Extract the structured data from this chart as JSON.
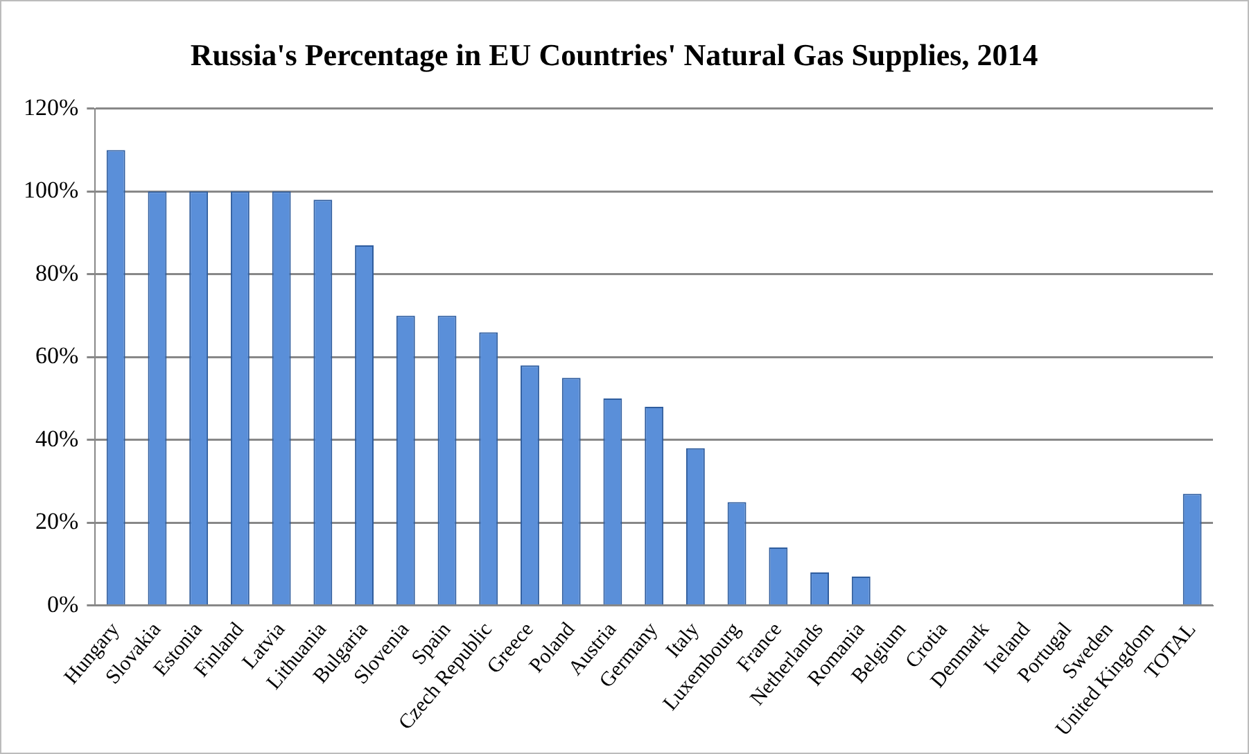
{
  "chart_data": {
    "type": "bar",
    "title": "Russia's Percentage in EU Countries' Natural Gas Supplies, 2014",
    "categories": [
      "Hungary",
      "Slovakia",
      "Estonia",
      "Finland",
      "Latvia",
      "Lithuania",
      "Bulgaria",
      "Slovenia",
      "Spain",
      "Czech Republic",
      "Greece",
      "Poland",
      "Austria",
      "Germany",
      "Italy",
      "Luxembourg",
      "France",
      "Netherlands",
      "Romania",
      "Belgium",
      "Crotia",
      "Denmark",
      "Ireland",
      "Portugal",
      "Sweden",
      "United Kingdom",
      "TOTAL"
    ],
    "values": [
      110,
      100,
      100,
      100,
      100,
      98,
      87,
      70,
      70,
      66,
      58,
      55,
      50,
      48,
      38,
      25,
      14,
      8,
      7,
      0,
      0,
      0,
      0,
      0,
      0,
      0,
      27
    ],
    "color": "#5a8fd9",
    "ylim": [
      0,
      120
    ],
    "yticks": [
      {
        "value": 0,
        "label": "0%"
      },
      {
        "value": 20,
        "label": "20%"
      },
      {
        "value": 40,
        "label": "40%"
      },
      {
        "value": 60,
        "label": "60%"
      },
      {
        "value": 80,
        "label": "80%"
      },
      {
        "value": 100,
        "label": "100%"
      },
      {
        "value": 120,
        "label": "120%"
      }
    ],
    "grid": "y",
    "legend": false
  }
}
